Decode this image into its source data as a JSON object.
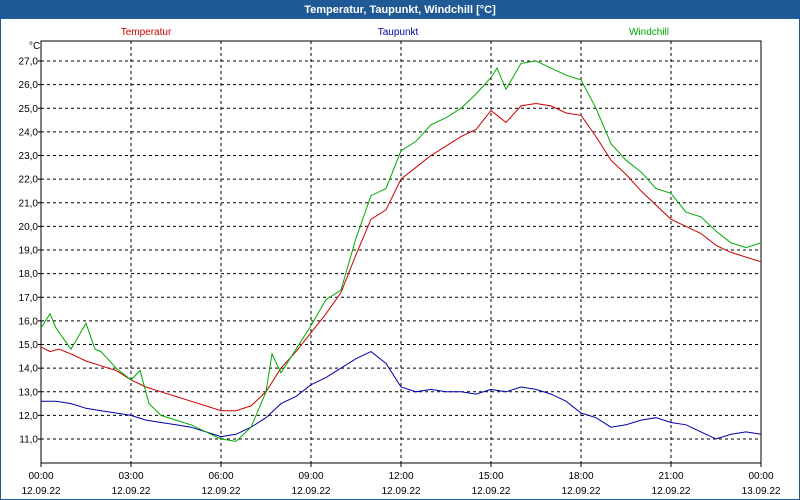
{
  "window": {
    "title": "Temperatur, Taupunkt, Windchill [°C]"
  },
  "colors": {
    "titlebar": "#1f5a96",
    "grid": "#000000"
  },
  "chart_data": {
    "type": "line",
    "yunit": "°C",
    "ylim": [
      10.4,
      27.8
    ],
    "yticks": [
      "11,0",
      "12,0",
      "13,0",
      "14,0",
      "15,0",
      "16,0",
      "17,0",
      "18,0",
      "19,0",
      "20,0",
      "21,0",
      "22,0",
      "23,0",
      "24,0",
      "25,0",
      "26,0",
      "27,0"
    ],
    "xlim": [
      0,
      24
    ],
    "xticks": [
      {
        "time": "00:00",
        "date": "12.09.22"
      },
      {
        "time": "03:00",
        "date": "12.09.22"
      },
      {
        "time": "06:00",
        "date": "12.09.22"
      },
      {
        "time": "09:00",
        "date": "12.09.22"
      },
      {
        "time": "12:00",
        "date": "12.09.22"
      },
      {
        "time": "15:00",
        "date": "12.09.22"
      },
      {
        "time": "18:00",
        "date": "12.09.22"
      },
      {
        "time": "21:00",
        "date": "12.09.22"
      },
      {
        "time": "00:00",
        "date": "13.09.22"
      }
    ],
    "grid": true,
    "series": [
      {
        "name": "Temperatur",
        "color": "#cc0000",
        "x": [
          0,
          0.3,
          0.6,
          1,
          1.5,
          2,
          2.5,
          3,
          3.5,
          4,
          4.5,
          5,
          5.5,
          6,
          6.5,
          7,
          7.5,
          8,
          8.5,
          9,
          9.5,
          10,
          10.5,
          11,
          11.5,
          12,
          12.5,
          13,
          13.5,
          14,
          14.5,
          15,
          15.5,
          16,
          16.5,
          17,
          17.5,
          18,
          18.5,
          19,
          19.5,
          20,
          20.5,
          21,
          21.5,
          22,
          22.5,
          23,
          23.5,
          24
        ],
        "values": [
          14.9,
          14.7,
          14.8,
          14.6,
          14.3,
          14.1,
          13.9,
          13.5,
          13.2,
          13.0,
          12.8,
          12.6,
          12.4,
          12.2,
          12.2,
          12.4,
          13.0,
          14.0,
          14.7,
          15.5,
          16.3,
          17.2,
          18.8,
          20.3,
          20.7,
          22.0,
          22.5,
          23.0,
          23.4,
          23.8,
          24.1,
          24.9,
          24.4,
          25.1,
          25.2,
          25.1,
          24.8,
          24.7,
          23.8,
          22.8,
          22.2,
          21.5,
          20.9,
          20.3,
          20.0,
          19.7,
          19.2,
          18.9,
          18.7,
          18.5
        ]
      },
      {
        "name": "Taupunkt",
        "color": "#0000aa",
        "x": [
          0,
          0.5,
          1,
          1.5,
          2,
          2.5,
          3,
          3.5,
          4,
          4.5,
          5,
          5.5,
          6,
          6.5,
          7,
          7.5,
          8,
          8.5,
          9,
          9.5,
          10,
          10.5,
          11,
          11.5,
          12,
          12.5,
          13,
          13.5,
          14,
          14.5,
          15,
          15.5,
          16,
          16.5,
          17,
          17.5,
          18,
          18.5,
          19,
          19.5,
          20,
          20.5,
          21,
          21.5,
          22,
          22.5,
          23,
          23.5,
          24
        ],
        "values": [
          12.6,
          12.6,
          12.5,
          12.3,
          12.2,
          12.1,
          12.0,
          11.8,
          11.7,
          11.6,
          11.5,
          11.3,
          11.1,
          11.2,
          11.5,
          11.9,
          12.5,
          12.8,
          13.3,
          13.6,
          14.0,
          14.4,
          14.7,
          14.2,
          13.2,
          13.0,
          13.1,
          13.0,
          13.0,
          12.9,
          13.1,
          13.0,
          13.2,
          13.1,
          12.9,
          12.6,
          12.1,
          11.9,
          11.5,
          11.6,
          11.8,
          11.9,
          11.7,
          11.6,
          11.3,
          11.0,
          11.2,
          11.3,
          11.2
        ]
      },
      {
        "name": "Windchill",
        "color": "#00aa00",
        "x": [
          0,
          0.3,
          0.5,
          1,
          1.5,
          1.8,
          2,
          2.5,
          3,
          3.3,
          3.6,
          4,
          4.5,
          5,
          5.5,
          6,
          6.5,
          7,
          7.5,
          7.7,
          8,
          8.5,
          9,
          9.5,
          10,
          10.5,
          11,
          11.5,
          12,
          12.5,
          13,
          13.5,
          14,
          14.5,
          15,
          15.2,
          15.5,
          16,
          16.5,
          17,
          17.5,
          18,
          18.5,
          19,
          19.5,
          20,
          20.5,
          21,
          21.5,
          22,
          22.5,
          23,
          23.5,
          24
        ],
        "values": [
          15.7,
          16.3,
          15.7,
          14.8,
          15.9,
          14.8,
          14.7,
          14.0,
          13.5,
          13.9,
          12.5,
          12.0,
          11.8,
          11.6,
          11.3,
          11.0,
          10.9,
          11.5,
          13.0,
          14.6,
          13.8,
          14.8,
          15.8,
          16.9,
          17.3,
          19.5,
          21.3,
          21.6,
          23.2,
          23.6,
          24.3,
          24.6,
          25.0,
          25.6,
          26.3,
          26.7,
          25.8,
          26.9,
          27.0,
          26.7,
          26.4,
          26.2,
          25.0,
          23.5,
          22.8,
          22.3,
          21.6,
          21.4,
          20.6,
          20.4,
          19.8,
          19.3,
          19.1,
          19.3
        ]
      }
    ]
  }
}
